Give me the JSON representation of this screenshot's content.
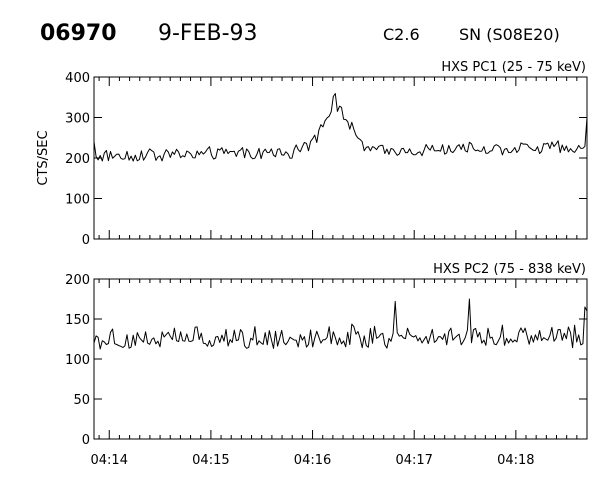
{
  "header": {
    "event_id": "06970",
    "date": "9-FEB-93",
    "goes_class": "C2.6",
    "location": "SN (S08E20)"
  },
  "chart_data": [
    {
      "type": "line",
      "panel": "top",
      "label": "HXS PC1 (25 - 75 keV)",
      "ylabel": "CTS/SEC",
      "xlabel": "",
      "ylim": [
        0,
        400
      ],
      "yticks": [
        0,
        100,
        200,
        300,
        400
      ],
      "xlim": [
        13.85,
        18.7
      ],
      "xticks": [
        14,
        15,
        16,
        17,
        18
      ],
      "xticklabels": [
        "04:14",
        "04:15",
        "04:16",
        "04:17",
        "04:18"
      ],
      "baseline": 205,
      "baseline_end": 228,
      "noise": 14,
      "start_value": 240,
      "end_value": 300,
      "peak": {
        "x": 16.22,
        "y": 330,
        "width": 0.28
      }
    },
    {
      "type": "line",
      "panel": "bottom",
      "label": "HXS PC2 (75 - 838 keV)",
      "ylabel": "",
      "xlabel": "",
      "ylim": [
        0,
        200
      ],
      "yticks": [
        0,
        50,
        100,
        150,
        200
      ],
      "xlim": [
        13.85,
        18.7
      ],
      "xticks": [
        14,
        15,
        16,
        17,
        18
      ],
      "xticklabels": [
        "04:14",
        "04:15",
        "04:16",
        "04:17",
        "04:18"
      ],
      "baseline": 125,
      "baseline_end": 130,
      "noise": 13,
      "start_value": 120,
      "end_value": 160,
      "spikes": [
        {
          "x": 16.82,
          "y": 172
        },
        {
          "x": 17.55,
          "y": 175
        },
        {
          "x": 18.68,
          "y": 165
        }
      ]
    }
  ]
}
